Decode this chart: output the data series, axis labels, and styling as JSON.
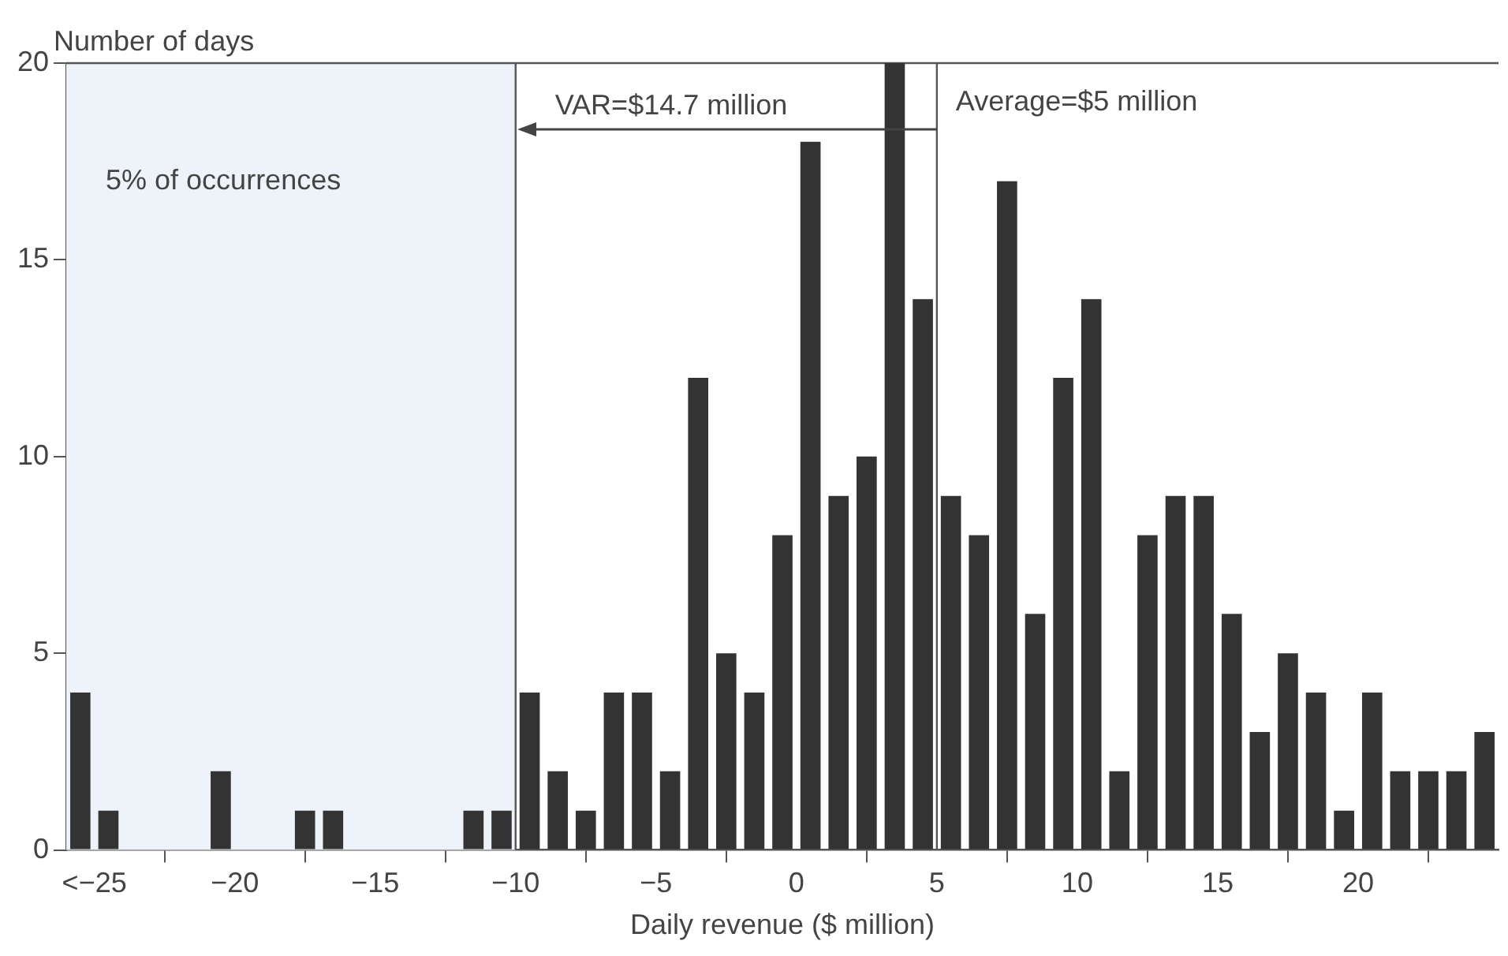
{
  "chart_data": {
    "type": "histogram",
    "xlabel": "Daily revenue ($ million)",
    "ylabel": "Number of days",
    "bins": [
      -26,
      -25,
      -24,
      -23,
      -22,
      -21,
      -20,
      -19,
      -18,
      -17,
      -16,
      -15,
      -14,
      -13,
      -12,
      -11,
      -10,
      -9,
      -8,
      -7,
      -6,
      -5,
      -4,
      -3,
      -2,
      -1,
      0,
      1,
      2,
      3,
      4,
      5,
      6,
      7,
      8,
      9,
      10,
      11,
      12,
      13,
      14,
      15,
      16,
      17,
      18,
      19,
      20,
      21,
      22,
      23,
      24,
      25
    ],
    "values": [
      4,
      1,
      0,
      0,
      0,
      2,
      0,
      0,
      1,
      1,
      0,
      0,
      0,
      0,
      1,
      1,
      4,
      2,
      1,
      4,
      4,
      2,
      12,
      5,
      4,
      8,
      18,
      9,
      10,
      20,
      14,
      9,
      8,
      17,
      6,
      12,
      14,
      2,
      8,
      9,
      9,
      6,
      3,
      5,
      4,
      1,
      4,
      2,
      2,
      2,
      3
    ],
    "color": "#333333",
    "xlim": [
      -26,
      25
    ],
    "xticks": [
      {
        "value": -25,
        "label": "<−25"
      },
      {
        "value": -20,
        "label": "−20"
      },
      {
        "value": -15,
        "label": "−15"
      },
      {
        "value": -10,
        "label": "−10"
      },
      {
        "value": -5,
        "label": "−5"
      },
      0,
      5,
      10,
      15,
      20
    ],
    "ylim": [
      0,
      20
    ],
    "yticks": [
      0,
      5,
      10,
      15,
      20
    ],
    "bands": [
      {
        "axis": "x",
        "from": -26,
        "to": -10,
        "label": "5% of occurrences",
        "color": "#eef3f9"
      }
    ],
    "ref_lines": [
      {
        "axis": "x",
        "value": -10
      },
      {
        "axis": "x",
        "value": 5,
        "label": "Average=$5 million"
      }
    ],
    "annotations": [
      {
        "text": "VAR=$14.7 million",
        "x": -10,
        "y": 18.3
      }
    ]
  }
}
